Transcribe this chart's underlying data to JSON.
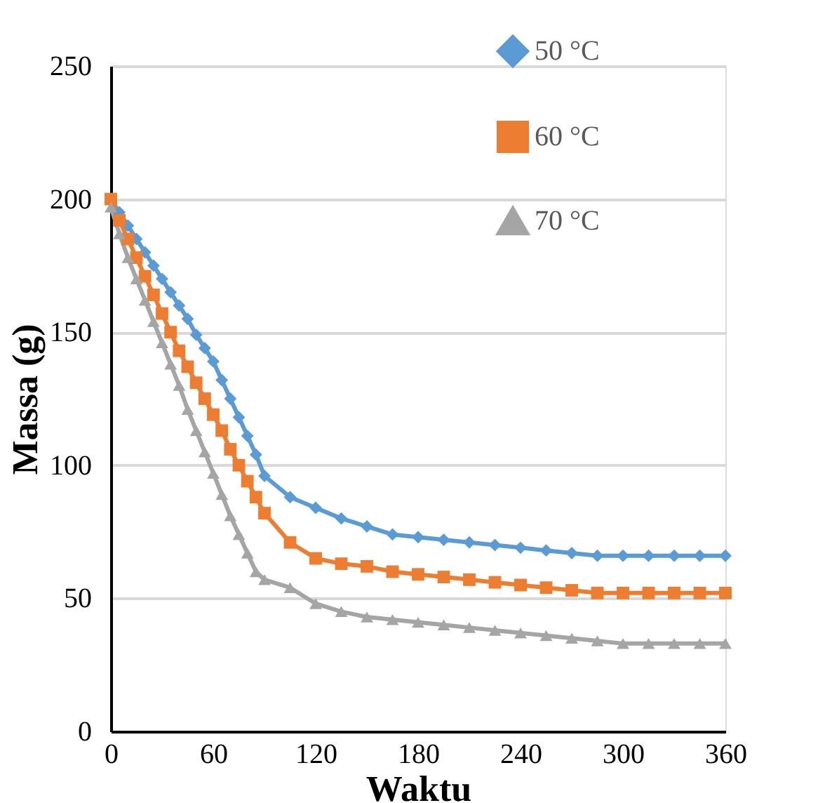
{
  "chart_data": {
    "type": "line",
    "xlabel": "Waktu",
    "ylabel": "Massa  (g)",
    "x": [
      0,
      5,
      10,
      15,
      20,
      25,
      30,
      35,
      40,
      45,
      50,
      55,
      60,
      65,
      70,
      75,
      80,
      85,
      90,
      105,
      120,
      135,
      150,
      165,
      180,
      195,
      210,
      225,
      240,
      255,
      270,
      285,
      300,
      315,
      330,
      345,
      360
    ],
    "series": [
      {
        "name": "50 °C",
        "color": "#5b9bd5",
        "marker": "diamond",
        "values": [
          200,
          195,
          190,
          185,
          180,
          175,
          170,
          165,
          160,
          155,
          149,
          144,
          139,
          132,
          125,
          118,
          111,
          104,
          96,
          88,
          84,
          80,
          77,
          74,
          73,
          72,
          71,
          70,
          69,
          68,
          67,
          66,
          66,
          66,
          66,
          66,
          66
        ]
      },
      {
        "name": "60 °C",
        "color": "#ed7d31",
        "marker": "square",
        "values": [
          200,
          192,
          185,
          178,
          171,
          164,
          157,
          150,
          143,
          137,
          131,
          125,
          119,
          113,
          106,
          100,
          94,
          88,
          82,
          71,
          65,
          63,
          62,
          60,
          59,
          58,
          57,
          56,
          55,
          54,
          53,
          52,
          52,
          52,
          52,
          52,
          52
        ]
      },
      {
        "name": "70 °C",
        "color": "#a5a5a5",
        "marker": "triangle",
        "values": [
          197,
          187,
          178,
          170,
          162,
          154,
          146,
          138,
          130,
          121,
          113,
          105,
          97,
          89,
          81,
          74,
          67,
          60,
          57,
          54,
          48,
          45,
          43,
          42,
          41,
          40,
          39,
          38,
          37,
          36,
          35,
          34,
          33,
          33,
          33,
          33,
          33
        ]
      }
    ],
    "xlim": [
      0,
      360
    ],
    "xticks": [
      0,
      60,
      120,
      180,
      240,
      300,
      360
    ],
    "ylim": [
      0,
      250
    ],
    "yticks": [
      0,
      50,
      100,
      150,
      200,
      250
    ],
    "grid": "y",
    "legend": "top right",
    "line_style": "solid"
  }
}
